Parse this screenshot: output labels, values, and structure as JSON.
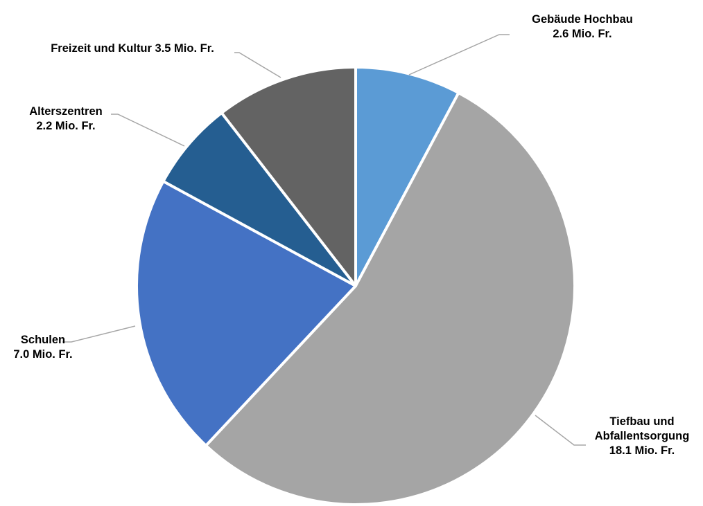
{
  "chart_data": {
    "type": "pie",
    "title": "",
    "unit": "Mio. Fr.",
    "start_angle_deg": 0,
    "direction": "clockwise",
    "legend": "none",
    "slices": [
      {
        "category": "Gebäude Hochbau",
        "value": 2.6,
        "label_lines": [
          "Gebäude Hochbau",
          "2.6 Mio. Fr."
        ],
        "color": "#5b9bd5"
      },
      {
        "category": "Tiefbau und Abfallentsorgung",
        "value": 18.1,
        "label_lines": [
          "Tiefbau und",
          "Abfallentsorgung",
          "18.1 Mio. Fr."
        ],
        "color": "#a5a5a5"
      },
      {
        "category": "Schulen",
        "value": 7.0,
        "label_lines": [
          "Schulen",
          "7.0 Mio. Fr."
        ],
        "color": "#4472c4"
      },
      {
        "category": "Alterszentren",
        "value": 2.2,
        "label_lines": [
          "Alterszentren",
          "2.2 Mio. Fr."
        ],
        "color": "#255e91"
      },
      {
        "category": "Freizeit und Kultur",
        "value": 3.5,
        "label_lines": [
          "Freizeit und Kultur 3.5 Mio. Fr."
        ],
        "color": "#636363"
      }
    ]
  }
}
